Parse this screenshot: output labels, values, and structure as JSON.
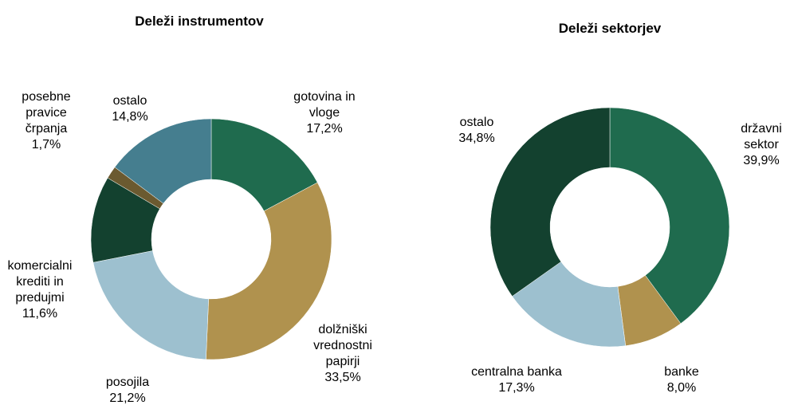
{
  "chart_data": [
    {
      "type": "donut",
      "title": "Deleži instrumentov",
      "categories": [
        "gotovina in\nvloge",
        "dolžniški\nvrednostni\npapirji",
        "posojila",
        "komercialni\nkrediti in\npredujmi",
        "posebne\npravice\nčrpanja",
        "ostalo"
      ],
      "values": [
        17.2,
        33.5,
        21.2,
        11.6,
        1.7,
        14.8
      ],
      "value_labels": [
        "17,2%",
        "33,5%",
        "21,2%",
        "11,6%",
        "1,7%",
        "14,8%"
      ],
      "colors": [
        "#1f6b4e",
        "#b0924e",
        "#9dc0cf",
        "#13412f",
        "#6b5a30",
        "#457e8f"
      ]
    },
    {
      "type": "donut",
      "title": "Deleži sektorjev",
      "categories": [
        "državni\nsektor",
        "banke",
        "centralna banka",
        "ostalo"
      ],
      "values": [
        39.9,
        8.0,
        17.3,
        34.8
      ],
      "value_labels": [
        "39,9%",
        "8,0%",
        "17,3%",
        "34,8%"
      ],
      "colors": [
        "#1f6b4e",
        "#b0924e",
        "#9dc0cf",
        "#13412f"
      ]
    }
  ]
}
